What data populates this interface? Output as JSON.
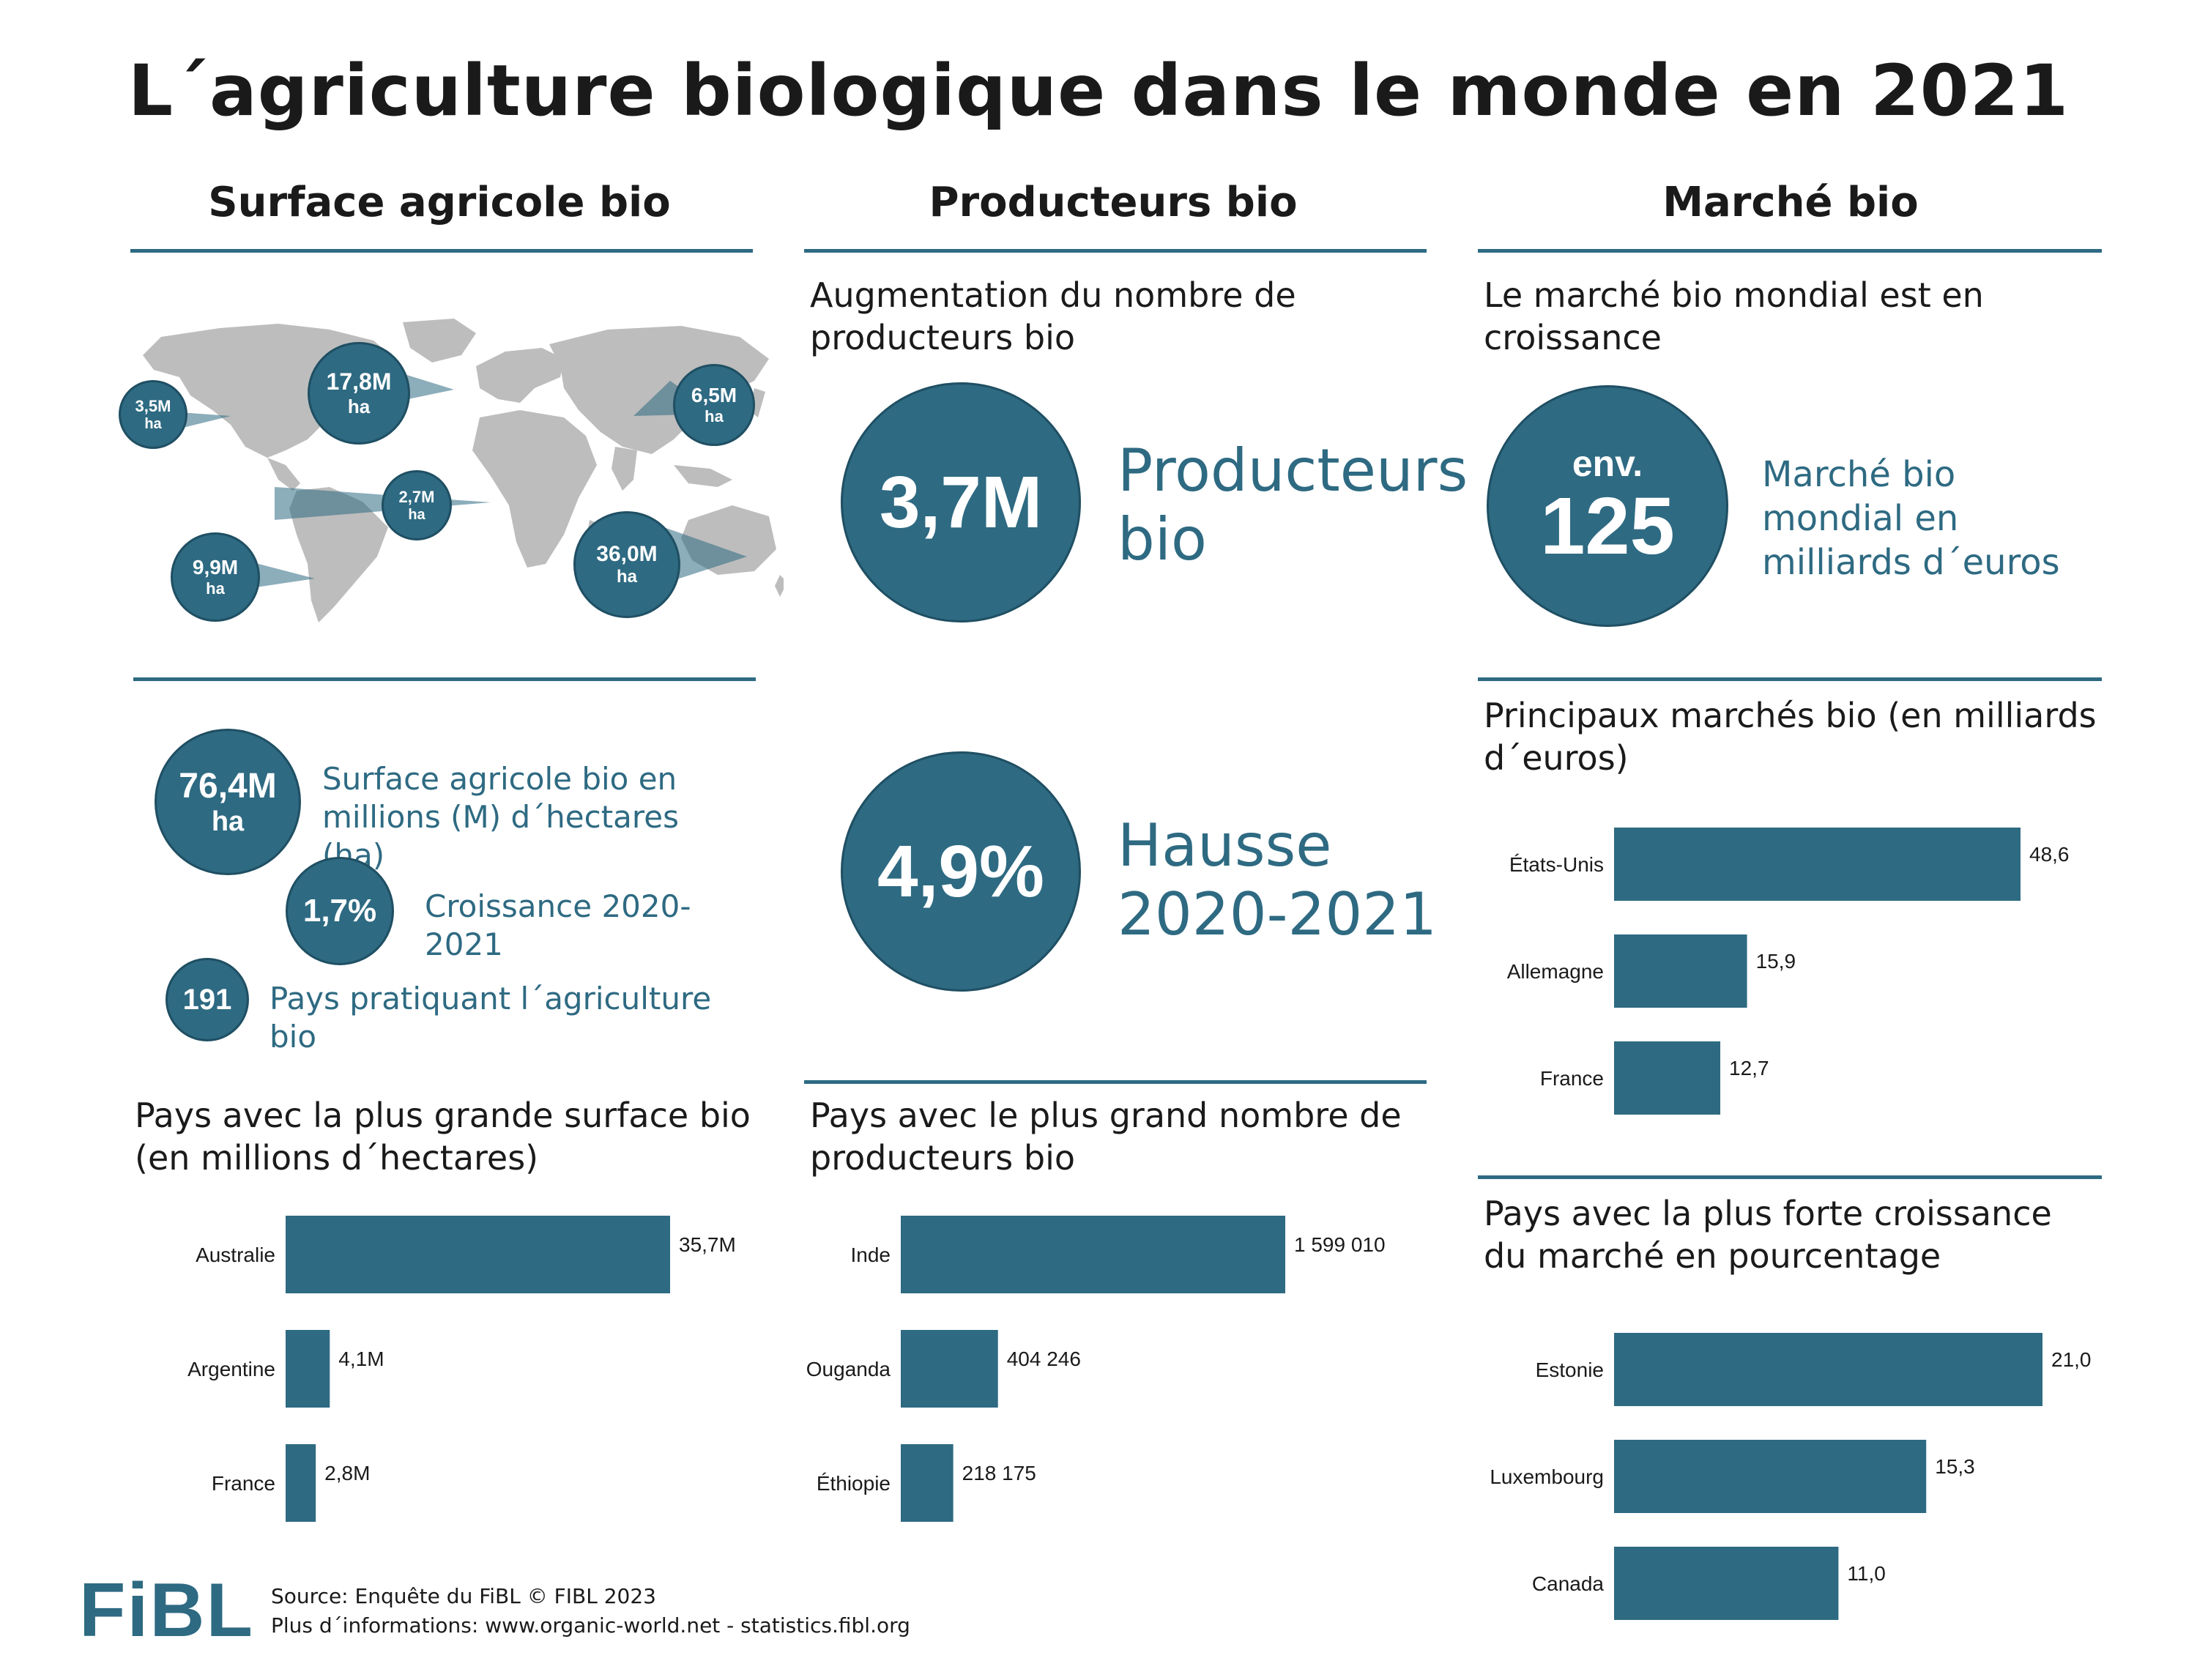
{
  "title": "L´agriculture biologique dans le monde en 2021",
  "columns": {
    "surface": "Surface agricole bio",
    "producteurs": "Producteurs bio",
    "marche": "Marché bio"
  },
  "map": {
    "bubbles": [
      {
        "value": "3,5M",
        "unit": "ha"
      },
      {
        "value": "17,8M",
        "unit": "ha"
      },
      {
        "value": "6,5M",
        "unit": "ha"
      },
      {
        "value": "2,7M",
        "unit": "ha"
      },
      {
        "value": "9,9M",
        "unit": "ha"
      },
      {
        "value": "36,0M",
        "unit": "ha"
      }
    ]
  },
  "surface_stats": [
    {
      "value": "76,4M",
      "unit": "ha",
      "label": "Surface agricole bio en millions (M) d´hectares (ha)"
    },
    {
      "value": "1,7%",
      "label": "Croissance 2020-2021"
    },
    {
      "value": "191",
      "label": "Pays pratiquant l´agriculture bio"
    }
  ],
  "producteurs": {
    "subtitle": "Augmentation du nombre de producteurs bio",
    "count_value": "3,7M",
    "count_label": "Producteurs bio",
    "growth_value": "4,9%",
    "growth_label": "Hausse 2020-2021"
  },
  "marche": {
    "subtitle": "Le marché bio mondial est en croissance",
    "circle_prefix": "env.",
    "circle_value": "125",
    "circle_label": "Marché bio mondial en milliards d´euros"
  },
  "chart_data": [
    {
      "type": "bar",
      "title": "Pays avec la plus grande surface bio (en millions d´hectares)",
      "categories": [
        "Australie",
        "Argentine",
        "France"
      ],
      "values": [
        35.7,
        4.1,
        2.8
      ],
      "labels": [
        "35,7M",
        "4,1M",
        "2,8M"
      ]
    },
    {
      "type": "bar",
      "title": "Pays avec le plus grand nombre de producteurs bio",
      "categories": [
        "Inde",
        "Ouganda",
        "Éthiopie"
      ],
      "values": [
        1599010,
        404246,
        218175
      ],
      "labels": [
        "1 599 010",
        "404 246",
        "218 175"
      ]
    },
    {
      "type": "bar",
      "title": "Principaux marchés bio (en milliards d´euros)",
      "categories": [
        "États-Unis",
        "Allemagne",
        "France"
      ],
      "values": [
        48.6,
        15.9,
        12.7
      ],
      "labels": [
        "48,6",
        "15,9",
        "12,7"
      ]
    },
    {
      "type": "bar",
      "title": "Pays avec la plus forte croissance du marché  en pourcentage",
      "categories": [
        "Estonie",
        "Luxembourg",
        "Canada"
      ],
      "values": [
        21.0,
        15.3,
        11.0
      ],
      "labels": [
        "21,0",
        "15,3",
        "11,0"
      ]
    }
  ],
  "footer": {
    "logo": "FiBL",
    "source": "Source: Enquête du FiBL © FIBL 2023",
    "more": "Plus d´informations: www.organic-world.net - statistics.fibl.org"
  },
  "colors": {
    "accent": "#2e6a82",
    "map": "#bdbdbd"
  }
}
